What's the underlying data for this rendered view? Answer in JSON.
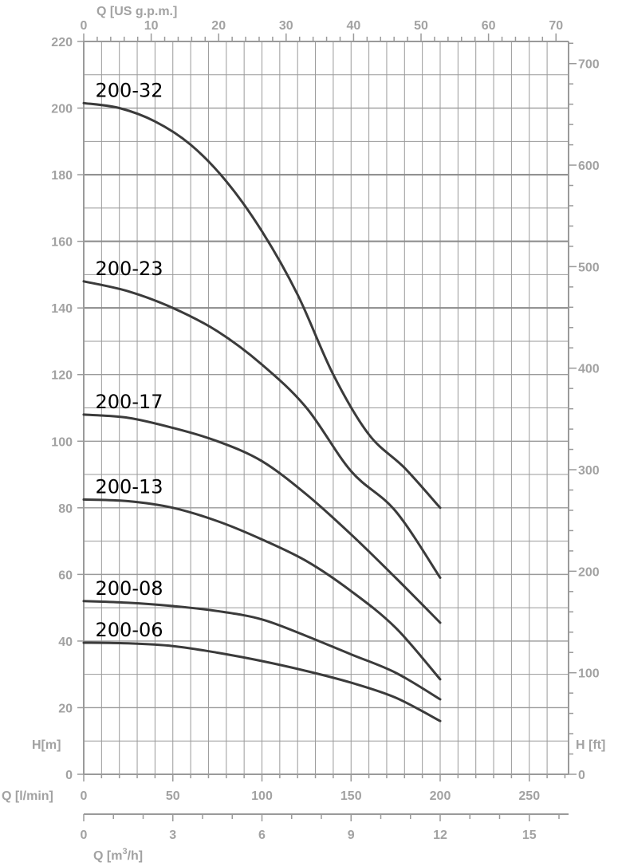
{
  "chart_data": {
    "type": "line",
    "title": "",
    "grid": true,
    "x_unit": "l/min",
    "y_unit": "m",
    "xlim": [
      0,
      270
    ],
    "ylim": [
      0,
      220
    ],
    "axes": {
      "top": {
        "title": "Q [US g.p.m.]",
        "ticks": [
          "0",
          "10",
          "20",
          "30",
          "40",
          "50",
          "60",
          "70"
        ],
        "range": [
          0,
          70
        ]
      },
      "left": {
        "title": "H[m]",
        "ticks": [
          "0",
          "20",
          "40",
          "60",
          "80",
          "100",
          "120",
          "140",
          "160",
          "180",
          "200",
          "220"
        ]
      },
      "right": {
        "title": "H [ft]",
        "ticks": [
          "0",
          "100",
          "200",
          "300",
          "400",
          "500",
          "600",
          "700"
        ]
      },
      "bottom": {
        "title": "Q [l/min]",
        "ticks": [
          "0",
          "50",
          "100",
          "150",
          "200",
          "250"
        ]
      },
      "bottom2": {
        "title_main": "Q [m",
        "title_sup": "3",
        "title_end": "/h]",
        "ticks": [
          "0",
          "3",
          "6",
          "9",
          "12",
          "15"
        ],
        "range": [
          0,
          15
        ]
      }
    },
    "series": [
      {
        "name": "200-32",
        "x": [
          0,
          20,
          40,
          60,
          80,
          100,
          120,
          140,
          160,
          180,
          200
        ],
        "y": [
          201.5,
          200,
          196,
          189,
          178,
          163,
          144,
          120,
          102,
          92,
          80
        ]
      },
      {
        "name": "200-23",
        "x": [
          0,
          25,
          50,
          75,
          100,
          125,
          150,
          175,
          200
        ],
        "y": [
          148,
          145,
          140,
          133,
          123,
          110,
          91,
          79,
          59
        ]
      },
      {
        "name": "200-17",
        "x": [
          0,
          25,
          50,
          75,
          100,
          125,
          150,
          175,
          200
        ],
        "y": [
          108,
          107,
          104,
          100,
          94,
          84,
          72,
          59,
          45.5
        ]
      },
      {
        "name": "200-13",
        "x": [
          0,
          25,
          50,
          75,
          100,
          125,
          150,
          175,
          200
        ],
        "y": [
          82.5,
          82,
          80,
          76,
          70.5,
          64,
          55,
          44,
          28.5
        ]
      },
      {
        "name": "200-08",
        "x": [
          0,
          25,
          50,
          75,
          100,
          125,
          150,
          175,
          200
        ],
        "y": [
          52,
          51.5,
          50.5,
          49,
          46.5,
          41.5,
          36,
          30.5,
          22.5
        ]
      },
      {
        "name": "200-06",
        "x": [
          0,
          25,
          50,
          75,
          100,
          125,
          150,
          175,
          200
        ],
        "y": [
          39.5,
          39.3,
          38.5,
          36.5,
          34,
          31,
          27.5,
          23,
          16
        ]
      }
    ]
  }
}
